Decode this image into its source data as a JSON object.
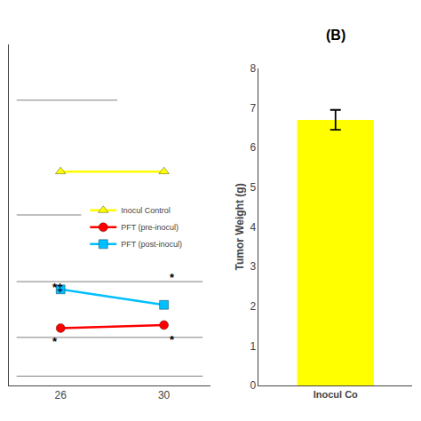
{
  "chart_data": [
    {
      "type": "line",
      "x": [
        26,
        30
      ],
      "xlim": [
        24.0,
        31.8
      ],
      "xticks": [
        26,
        30
      ],
      "ylim": [
        0,
        11
      ],
      "yticks": [],
      "tick_labels": "x",
      "grid": false,
      "legend": "center",
      "series": [
        {
          "name": "Inocul Control",
          "color": "#ffff00",
          "marker": "triangle-up",
          "values": [
            6.9,
            6.9
          ]
        },
        {
          "name": "PFT (pre-inocul)",
          "color": "#ff0000",
          "marker": "circle",
          "values": [
            1.85,
            1.95
          ]
        },
        {
          "name": "PFT (post-inocul)",
          "color": "#00bfff",
          "marker": "square",
          "values": [
            3.1,
            2.6
          ]
        }
      ],
      "reference_lines": [
        {
          "y": 9.2,
          "x": [
            24.3,
            28.2
          ],
          "color": "#808080"
        },
        {
          "y": 5.5,
          "x": [
            24.3,
            26.8
          ],
          "color": "#808080"
        },
        {
          "y": 3.35,
          "x": [
            24.3,
            31.5
          ],
          "color": "#808080"
        },
        {
          "y": 1.55,
          "x": [
            24.3,
            31.5
          ],
          "color": "#808080"
        },
        {
          "y": 0.3,
          "x": [
            24.3,
            31.5
          ],
          "color": "#808080"
        }
      ],
      "annotations": [
        {
          "text": "*‡",
          "x": 25.6,
          "y": 2.9
        },
        {
          "text": "*",
          "x": 30.15,
          "y": 3.2
        },
        {
          "text": "*",
          "x": 25.6,
          "y": 1.15
        },
        {
          "text": "*",
          "x": 30.15,
          "y": 1.2
        }
      ]
    },
    {
      "type": "bar",
      "title": "(B)",
      "categories": [
        "Inocul Co"
      ],
      "values": [
        6.7
      ],
      "errors": [
        0.25
      ],
      "color": "#ffff00",
      "ylabel": "Tumor Weight (g)",
      "ylim": [
        0,
        8
      ],
      "yticks": [
        0,
        1,
        2,
        3,
        4,
        5,
        6,
        7,
        8
      ],
      "grid": false
    }
  ]
}
